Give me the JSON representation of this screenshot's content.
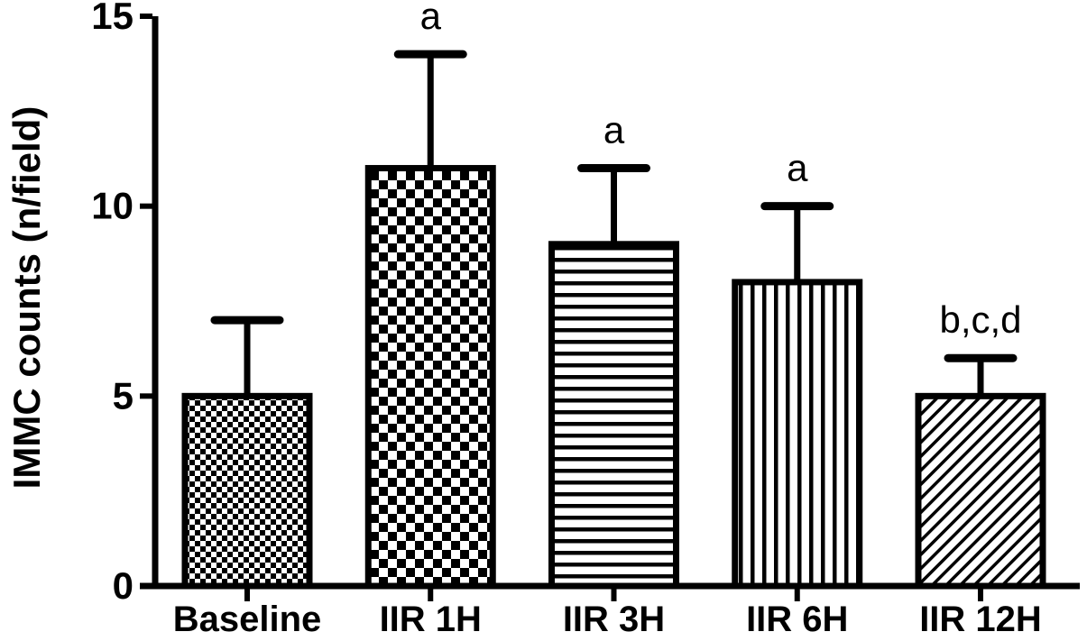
{
  "chart_data": {
    "type": "bar",
    "title": "",
    "xlabel": "",
    "ylabel": "IMMC counts (n/field)",
    "categories": [
      "Baseline",
      "IIR 1H",
      "IIR 3H",
      "IIR 6H",
      "IIR 12H"
    ],
    "values": [
      5,
      11,
      9,
      8,
      5
    ],
    "errors_upper": [
      2,
      3,
      2,
      2,
      1
    ],
    "annotations": [
      "",
      "a",
      "a",
      "a",
      "b,c,d"
    ],
    "bar_fill_patterns": [
      "checkerboard-fine",
      "checkerboard-coarse",
      "horizontal-lines",
      "vertical-lines",
      "diagonal-lines"
    ],
    "ylim": [
      0,
      15
    ],
    "yticks": [
      0,
      5,
      10,
      15
    ],
    "grid": false,
    "legend": "none",
    "bar_outline_color": "#000000",
    "background_color": "#ffffff"
  }
}
